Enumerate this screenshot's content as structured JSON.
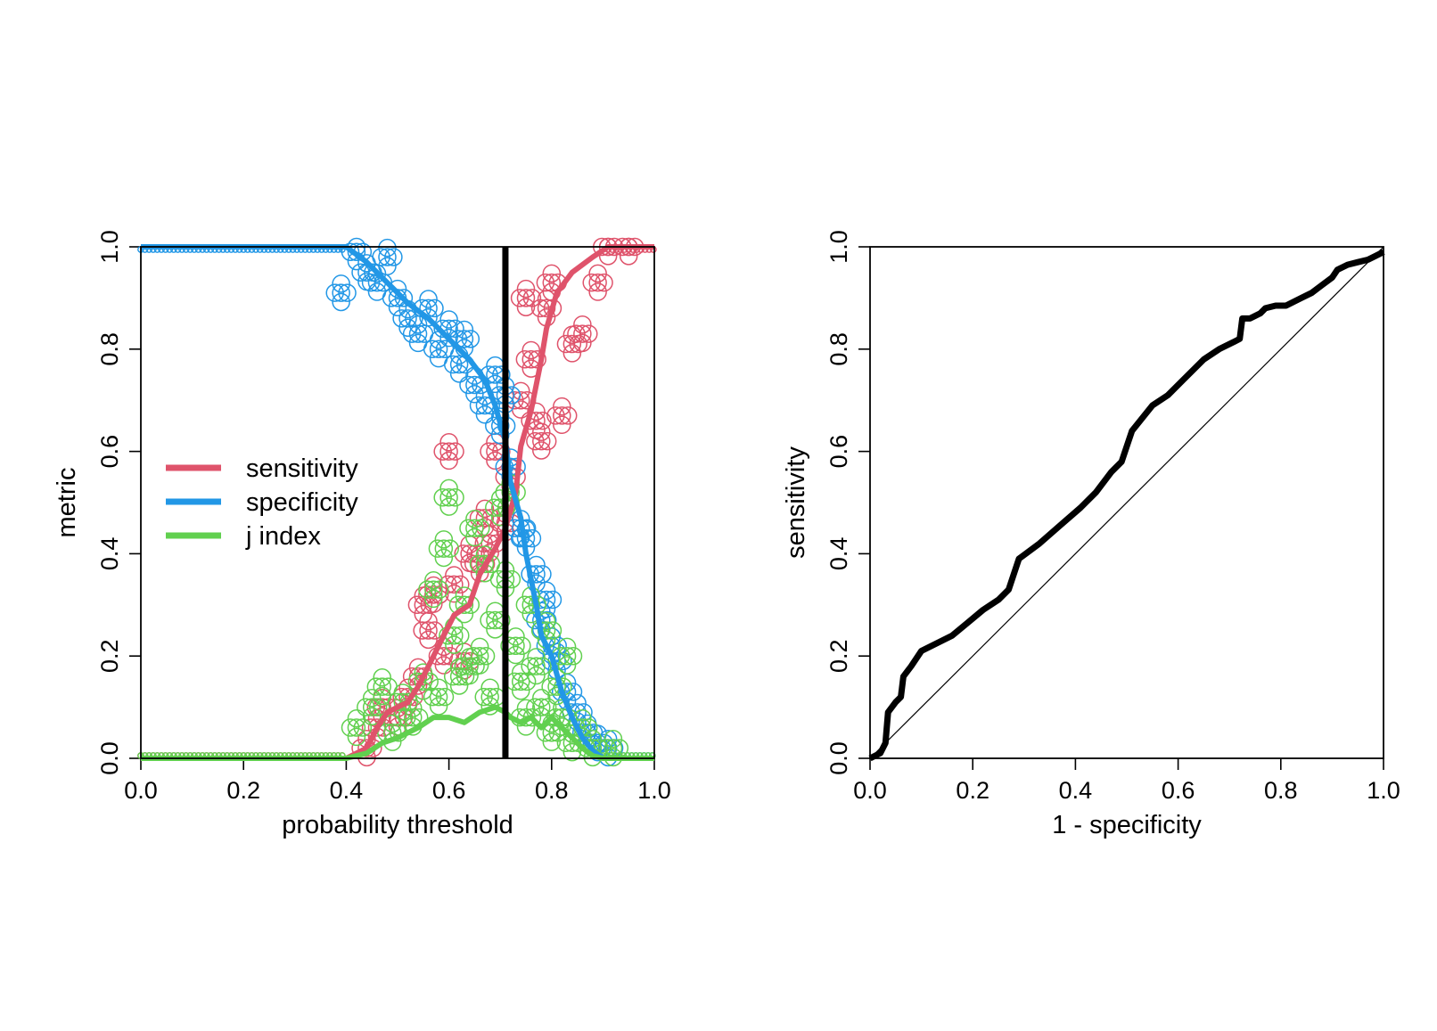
{
  "chart_data": [
    {
      "type": "scatter",
      "title": "",
      "xlabel": "probability threshold",
      "ylabel": "metric",
      "xlim": [
        0,
        1
      ],
      "ylim": [
        0,
        1
      ],
      "xticks": [
        "0.0",
        "0.2",
        "0.4",
        "0.6",
        "0.8",
        "1.0"
      ],
      "yticks": [
        "0.0",
        "0.2",
        "0.4",
        "0.6",
        "0.8",
        "1.0"
      ],
      "legend_position": "left",
      "grid": false,
      "vline_x": 0.71,
      "series": [
        {
          "name": "sensitivity",
          "color": "#DF536B",
          "line": [
            [
              0.0,
              0.0
            ],
            [
              0.4,
              0.0
            ],
            [
              0.44,
              0.02
            ],
            [
              0.46,
              0.06
            ],
            [
              0.48,
              0.09
            ],
            [
              0.52,
              0.11
            ],
            [
              0.54,
              0.14
            ],
            [
              0.56,
              0.18
            ],
            [
              0.59,
              0.24
            ],
            [
              0.61,
              0.28
            ],
            [
              0.64,
              0.3
            ],
            [
              0.66,
              0.36
            ],
            [
              0.69,
              0.41
            ],
            [
              0.71,
              0.45
            ],
            [
              0.73,
              0.52
            ],
            [
              0.74,
              0.61
            ],
            [
              0.76,
              0.68
            ],
            [
              0.78,
              0.78
            ],
            [
              0.79,
              0.84
            ],
            [
              0.81,
              0.91
            ],
            [
              0.84,
              0.95
            ],
            [
              0.88,
              0.98
            ],
            [
              0.91,
              1.0
            ],
            [
              1.0,
              1.0
            ]
          ],
          "points": [
            [
              0.44,
              0.02
            ],
            [
              0.46,
              0.06
            ],
            [
              0.47,
              0.1
            ],
            [
              0.5,
              0.08
            ],
            [
              0.52,
              0.12
            ],
            [
              0.54,
              0.16
            ],
            [
              0.55,
              0.3
            ],
            [
              0.56,
              0.25
            ],
            [
              0.57,
              0.32
            ],
            [
              0.59,
              0.2
            ],
            [
              0.6,
              0.6
            ],
            [
              0.61,
              0.34
            ],
            [
              0.63,
              0.19
            ],
            [
              0.64,
              0.4
            ],
            [
              0.66,
              0.38
            ],
            [
              0.67,
              0.47
            ],
            [
              0.68,
              0.42
            ],
            [
              0.69,
              0.6
            ],
            [
              0.71,
              0.46
            ],
            [
              0.72,
              0.55
            ],
            [
              0.74,
              0.7
            ],
            [
              0.75,
              0.9
            ],
            [
              0.76,
              0.78
            ],
            [
              0.77,
              0.66
            ],
            [
              0.78,
              0.62
            ],
            [
              0.79,
              0.88
            ],
            [
              0.8,
              0.93
            ],
            [
              0.82,
              0.67
            ],
            [
              0.84,
              0.81
            ],
            [
              0.86,
              0.83
            ],
            [
              0.89,
              0.93
            ],
            [
              0.91,
              1.0
            ],
            [
              0.95,
              1.0
            ]
          ]
        },
        {
          "name": "specificity",
          "color": "#2297E6",
          "line": [
            [
              0.0,
              1.0
            ],
            [
              0.4,
              1.0
            ],
            [
              0.44,
              0.97
            ],
            [
              0.48,
              0.93
            ],
            [
              0.52,
              0.89
            ],
            [
              0.56,
              0.86
            ],
            [
              0.6,
              0.82
            ],
            [
              0.64,
              0.78
            ],
            [
              0.67,
              0.74
            ],
            [
              0.69,
              0.69
            ],
            [
              0.71,
              0.62
            ],
            [
              0.72,
              0.54
            ],
            [
              0.74,
              0.47
            ],
            [
              0.75,
              0.4
            ],
            [
              0.77,
              0.3
            ],
            [
              0.78,
              0.24
            ],
            [
              0.8,
              0.2
            ],
            [
              0.82,
              0.13
            ],
            [
              0.84,
              0.08
            ],
            [
              0.86,
              0.04
            ],
            [
              0.88,
              0.015
            ],
            [
              0.9,
              0.0
            ],
            [
              1.0,
              0.0
            ]
          ],
          "points": [
            [
              0.39,
              0.91
            ],
            [
              0.42,
              0.99
            ],
            [
              0.44,
              0.95
            ],
            [
              0.46,
              0.93
            ],
            [
              0.48,
              0.98
            ],
            [
              0.5,
              0.9
            ],
            [
              0.52,
              0.86
            ],
            [
              0.54,
              0.83
            ],
            [
              0.56,
              0.88
            ],
            [
              0.58,
              0.8
            ],
            [
              0.6,
              0.84
            ],
            [
              0.62,
              0.77
            ],
            [
              0.63,
              0.82
            ],
            [
              0.65,
              0.73
            ],
            [
              0.67,
              0.69
            ],
            [
              0.69,
              0.75
            ],
            [
              0.7,
              0.65
            ],
            [
              0.71,
              0.71
            ],
            [
              0.72,
              0.57
            ],
            [
              0.74,
              0.45
            ],
            [
              0.75,
              0.43
            ],
            [
              0.77,
              0.36
            ],
            [
              0.78,
              0.27
            ],
            [
              0.79,
              0.31
            ],
            [
              0.8,
              0.22
            ],
            [
              0.81,
              0.19
            ],
            [
              0.83,
              0.13
            ],
            [
              0.85,
              0.09
            ],
            [
              0.87,
              0.05
            ],
            [
              0.89,
              0.03
            ],
            [
              0.91,
              0.02
            ]
          ]
        },
        {
          "name": "j index",
          "color": "#61D04F",
          "line": [
            [
              0.0,
              0.0
            ],
            [
              0.4,
              0.0
            ],
            [
              0.44,
              0.01
            ],
            [
              0.47,
              0.03
            ],
            [
              0.5,
              0.04
            ],
            [
              0.54,
              0.06
            ],
            [
              0.57,
              0.08
            ],
            [
              0.6,
              0.08
            ],
            [
              0.63,
              0.07
            ],
            [
              0.66,
              0.09
            ],
            [
              0.69,
              0.1
            ],
            [
              0.71,
              0.09
            ],
            [
              0.72,
              0.08
            ],
            [
              0.74,
              0.07
            ],
            [
              0.76,
              0.08
            ],
            [
              0.78,
              0.06
            ],
            [
              0.8,
              0.08
            ],
            [
              0.82,
              0.06
            ],
            [
              0.84,
              0.04
            ],
            [
              0.86,
              0.02
            ],
            [
              0.88,
              0.005
            ],
            [
              0.9,
              0.0
            ],
            [
              1.0,
              0.0
            ]
          ],
          "points": [
            [
              0.42,
              0.06
            ],
            [
              0.45,
              0.1
            ],
            [
              0.47,
              0.14
            ],
            [
              0.49,
              0.05
            ],
            [
              0.51,
              0.11
            ],
            [
              0.53,
              0.08
            ],
            [
              0.55,
              0.15
            ],
            [
              0.57,
              0.33
            ],
            [
              0.58,
              0.12
            ],
            [
              0.59,
              0.41
            ],
            [
              0.6,
              0.51
            ],
            [
              0.61,
              0.24
            ],
            [
              0.62,
              0.16
            ],
            [
              0.63,
              0.3
            ],
            [
              0.64,
              0.18
            ],
            [
              0.65,
              0.45
            ],
            [
              0.66,
              0.2
            ],
            [
              0.67,
              0.38
            ],
            [
              0.68,
              0.12
            ],
            [
              0.69,
              0.27
            ],
            [
              0.7,
              0.49
            ],
            [
              0.71,
              0.35
            ],
            [
              0.72,
              0.52
            ],
            [
              0.73,
              0.22
            ],
            [
              0.74,
              0.15
            ],
            [
              0.75,
              0.08
            ],
            [
              0.76,
              0.3
            ],
            [
              0.77,
              0.18
            ],
            [
              0.78,
              0.1
            ],
            [
              0.79,
              0.25
            ],
            [
              0.8,
              0.05
            ],
            [
              0.81,
              0.14
            ],
            [
              0.82,
              0.08
            ],
            [
              0.83,
              0.2
            ],
            [
              0.84,
              0.03
            ],
            [
              0.86,
              0.06
            ],
            [
              0.88,
              0.02
            ],
            [
              0.92,
              0.02
            ]
          ]
        }
      ]
    },
    {
      "type": "line",
      "title": "",
      "xlabel": "1 - specificity",
      "ylabel": "sensitivity",
      "xlim": [
        0,
        1
      ],
      "ylim": [
        0,
        1
      ],
      "xticks": [
        "0.0",
        "0.2",
        "0.4",
        "0.6",
        "0.8",
        "1.0"
      ],
      "yticks": [
        "0.0",
        "0.2",
        "0.4",
        "0.6",
        "0.8",
        "1.0"
      ],
      "grid": false,
      "diagonal": true,
      "series": [
        {
          "color": "#000000",
          "x": [
            0.0,
            0.02,
            0.03,
            0.035,
            0.05,
            0.06,
            0.065,
            0.08,
            0.1,
            0.13,
            0.16,
            0.19,
            0.22,
            0.25,
            0.27,
            0.29,
            0.33,
            0.37,
            0.41,
            0.44,
            0.47,
            0.49,
            0.51,
            0.55,
            0.58,
            0.61,
            0.65,
            0.68,
            0.71,
            0.72,
            0.725,
            0.74,
            0.76,
            0.77,
            0.79,
            0.81,
            0.84,
            0.86,
            0.88,
            0.9,
            0.91,
            0.93,
            0.95,
            0.97,
            0.98,
            1.0
          ],
          "y": [
            0.0,
            0.01,
            0.03,
            0.09,
            0.11,
            0.12,
            0.16,
            0.18,
            0.21,
            0.225,
            0.24,
            0.265,
            0.29,
            0.31,
            0.33,
            0.39,
            0.42,
            0.455,
            0.49,
            0.52,
            0.56,
            0.58,
            0.64,
            0.69,
            0.71,
            0.74,
            0.78,
            0.8,
            0.815,
            0.82,
            0.86,
            0.86,
            0.87,
            0.88,
            0.885,
            0.885,
            0.9,
            0.91,
            0.925,
            0.94,
            0.955,
            0.965,
            0.97,
            0.975,
            0.98,
            0.99
          ]
        }
      ]
    }
  ]
}
